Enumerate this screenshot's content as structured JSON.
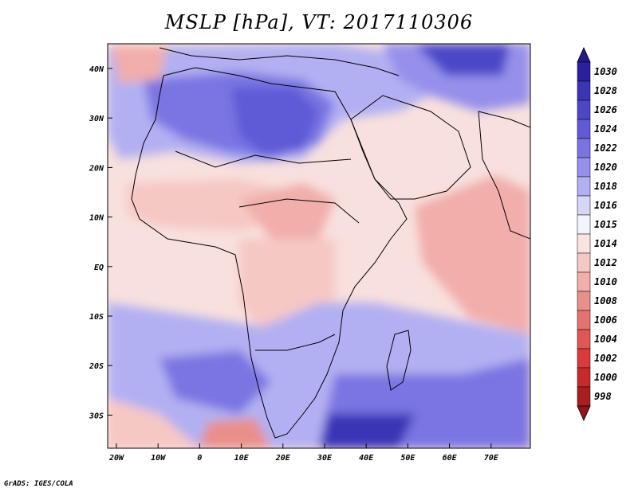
{
  "title": "MSLP [hPa], VT: 2017110306",
  "credit": "GrADS: IGES/COLA",
  "lat_labels": [
    "40N",
    "30N",
    "20N",
    "10N",
    "EQ",
    "10S",
    "20S",
    "30S"
  ],
  "lon_labels": [
    "20W",
    "10W",
    "0",
    "10E",
    "20E",
    "30E",
    "40E",
    "50E",
    "60E",
    "70E"
  ],
  "colorbar": {
    "labels": [
      "1030",
      "1028",
      "1026",
      "1024",
      "1022",
      "1020",
      "1018",
      "1016",
      "1015",
      "1014",
      "1012",
      "1010",
      "1008",
      "1006",
      "1004",
      "1002",
      "1000",
      "998"
    ],
    "colors": [
      "#2a1f9e",
      "#3a34b6",
      "#4b47c8",
      "#5f5ad6",
      "#7a74e2",
      "#9590eb",
      "#b2b0f2",
      "#d6d6f8",
      "#f4f4fd",
      "#fbe3e1",
      "#f6c8c4",
      "#f1aeaa",
      "#e98f8a",
      "#e47370",
      "#de5756",
      "#d93b3c",
      "#c82a2c",
      "#a91e20"
    ],
    "top_arrow_color": "#231a8a",
    "bottom_arrow_color": "#8e1618"
  },
  "colors": {
    "high": "#5f5ad6",
    "very_high": "#3a34b6",
    "low": "#f1aeaa",
    "neutral": "#fbe3e1",
    "coast": "#000000"
  }
}
